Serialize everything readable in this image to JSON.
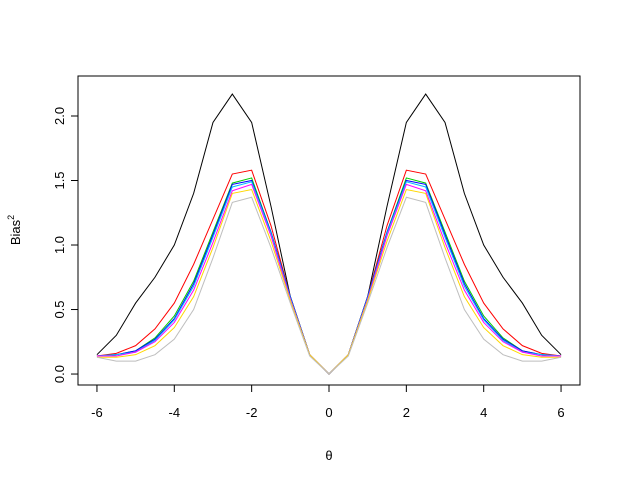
{
  "chart_data": {
    "type": "line",
    "xlabel": "θ",
    "ylabel": "Bias",
    "ylabel_superscript": "2",
    "x": [
      -6,
      -5.5,
      -5,
      -4.5,
      -4,
      -3.5,
      -3,
      -2.5,
      -2,
      -1.5,
      -1,
      -0.5,
      0,
      0.5,
      1,
      1.5,
      2,
      2.5,
      3,
      3.5,
      4,
      4.5,
      5,
      5.5,
      6
    ],
    "series": [
      {
        "color": "#000000",
        "values": [
          0.15,
          0.3,
          0.55,
          0.75,
          1.0,
          1.4,
          1.95,
          2.17,
          1.95,
          1.3,
          0.6,
          0.15,
          0,
          0.15,
          0.6,
          1.3,
          1.95,
          2.17,
          1.95,
          1.4,
          1.0,
          0.75,
          0.55,
          0.3,
          0.15
        ]
      },
      {
        "color": "#ff0000",
        "values": [
          0.14,
          0.16,
          0.22,
          0.35,
          0.55,
          0.85,
          1.2,
          1.55,
          1.58,
          1.15,
          0.6,
          0.15,
          0,
          0.15,
          0.6,
          1.15,
          1.58,
          1.55,
          1.2,
          0.85,
          0.55,
          0.35,
          0.22,
          0.16,
          0.14
        ]
      },
      {
        "color": "#00cd00",
        "values": [
          0.14,
          0.15,
          0.18,
          0.28,
          0.45,
          0.72,
          1.1,
          1.48,
          1.52,
          1.1,
          0.6,
          0.15,
          0,
          0.15,
          0.6,
          1.1,
          1.52,
          1.48,
          1.1,
          0.72,
          0.45,
          0.28,
          0.18,
          0.15,
          0.14
        ]
      },
      {
        "color": "#0000ff",
        "values": [
          0.14,
          0.15,
          0.18,
          0.27,
          0.43,
          0.7,
          1.08,
          1.47,
          1.5,
          1.1,
          0.6,
          0.15,
          0,
          0.15,
          0.6,
          1.1,
          1.5,
          1.47,
          1.08,
          0.7,
          0.43,
          0.27,
          0.18,
          0.15,
          0.14
        ]
      },
      {
        "color": "#00bfff",
        "values": [
          0.14,
          0.15,
          0.17,
          0.26,
          0.42,
          0.68,
          1.06,
          1.45,
          1.49,
          1.09,
          0.59,
          0.15,
          0,
          0.15,
          0.59,
          1.09,
          1.49,
          1.45,
          1.06,
          0.68,
          0.42,
          0.26,
          0.17,
          0.15,
          0.14
        ]
      },
      {
        "color": "#ff00ff",
        "values": [
          0.14,
          0.14,
          0.17,
          0.25,
          0.4,
          0.65,
          1.02,
          1.42,
          1.47,
          1.07,
          0.58,
          0.15,
          0,
          0.15,
          0.58,
          1.07,
          1.47,
          1.42,
          1.02,
          0.65,
          0.4,
          0.25,
          0.17,
          0.14,
          0.14
        ]
      },
      {
        "color": "#ffd700",
        "values": [
          0.13,
          0.13,
          0.15,
          0.22,
          0.36,
          0.6,
          0.98,
          1.4,
          1.43,
          1.03,
          0.57,
          0.15,
          0,
          0.15,
          0.57,
          1.03,
          1.43,
          1.4,
          0.98,
          0.6,
          0.36,
          0.22,
          0.15,
          0.13,
          0.13
        ]
      },
      {
        "color": "#bebebe",
        "values": [
          0.13,
          0.1,
          0.1,
          0.15,
          0.27,
          0.5,
          0.9,
          1.33,
          1.37,
          0.98,
          0.55,
          0.14,
          0,
          0.14,
          0.55,
          0.98,
          1.37,
          1.33,
          0.9,
          0.5,
          0.27,
          0.15,
          0.1,
          0.1,
          0.13
        ]
      }
    ],
    "xlim": [
      -6.49,
      6.49
    ],
    "ylim": [
      -0.085,
      2.31
    ],
    "xticks": [
      -6,
      -4,
      -2,
      0,
      2,
      4,
      6
    ],
    "yticks": [
      {
        "value": 0,
        "label": "0.0"
      },
      {
        "value": 0.5,
        "label": "0.5"
      },
      {
        "value": 1,
        "label": "1.0"
      },
      {
        "value": 1.5,
        "label": "1.5"
      },
      {
        "value": 2,
        "label": "2.0"
      }
    ]
  }
}
